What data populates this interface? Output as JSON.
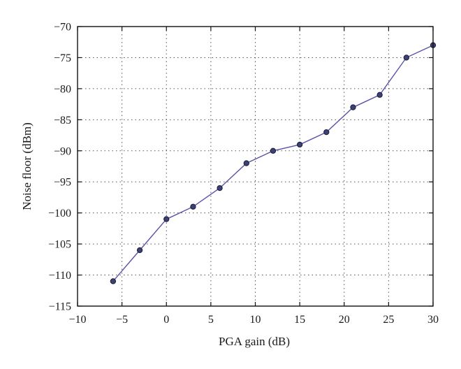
{
  "chart_data": {
    "type": "line",
    "title": "",
    "xlabel": "PGA gain (dB)",
    "ylabel": "Noise floor (dBm)",
    "xlim": [
      -10,
      30
    ],
    "ylim": [
      -115,
      -70
    ],
    "xticks": [
      -10,
      -5,
      0,
      5,
      10,
      15,
      20,
      25,
      30
    ],
    "yticks": [
      -115,
      -110,
      -105,
      -100,
      -95,
      -90,
      -85,
      -80,
      -75,
      -70
    ],
    "xtick_labels": [
      "−10",
      "−5",
      "0",
      "5",
      "10",
      "15",
      "20",
      "25",
      "30"
    ],
    "ytick_labels": [
      "−115",
      "−110",
      "−105",
      "−100",
      "−95",
      "−90",
      "−85",
      "−80",
      "−75",
      "−70"
    ],
    "grid": true,
    "series": [
      {
        "color": "#5a52a8",
        "marker_color": "#3d4273",
        "x": [
          -6,
          -3,
          0,
          3,
          6,
          9,
          12,
          15,
          18,
          21,
          24,
          27,
          30
        ],
        "y": [
          -111,
          -106,
          -101,
          -99,
          -96,
          -92,
          -90,
          -89,
          -87,
          -83,
          -81,
          -75,
          -73
        ]
      }
    ]
  }
}
